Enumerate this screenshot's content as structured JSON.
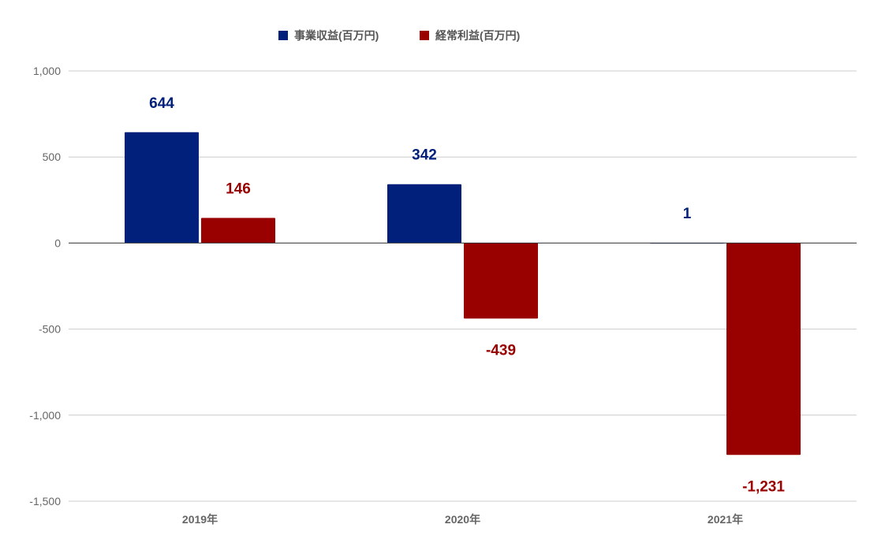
{
  "chart_data": {
    "type": "bar",
    "categories": [
      "2019年",
      "2020年",
      "2021年"
    ],
    "series": [
      {
        "name": "事業収益(百万円)",
        "color": "#00207c",
        "values": [
          644,
          342,
          1
        ],
        "labels": [
          "644",
          "342",
          "1"
        ]
      },
      {
        "name": "経常利益(百万円)",
        "color": "#990000",
        "values": [
          146,
          -439,
          -1231
        ],
        "labels": [
          "146",
          "-439",
          "-1,231"
        ]
      }
    ],
    "y_ticks": [
      1000,
      500,
      0,
      -500,
      -1000,
      -1500
    ],
    "y_tick_labels": [
      "1,000",
      "500",
      "0",
      "-500",
      "-1,000",
      "-1,500"
    ],
    "ylim": [
      -1500,
      1000
    ],
    "grid": true,
    "legend_position": "top-center"
  }
}
